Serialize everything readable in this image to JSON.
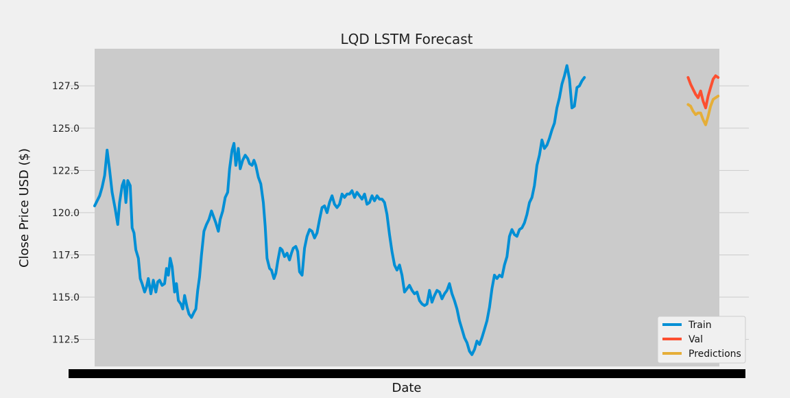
{
  "chart_data": {
    "type": "line",
    "title": "LQD LSTM Forecast",
    "xlabel": "Date",
    "ylabel": "Close Price USD ($)",
    "ylim": [
      110.9,
      129.7
    ],
    "yticks": [
      "112.5",
      "115.0",
      "117.5",
      "120.0",
      "122.5",
      "125.0",
      "127.5"
    ],
    "grid": true,
    "legend_position": "bottom-right",
    "x_index_range": [
      0,
      1000
    ],
    "colors": {
      "train": "#008fd5",
      "val": "#fc4f30",
      "predictions": "#e5ae38",
      "plot_bg": "#cbcbcb",
      "figure_bg": "#f0f0f0",
      "grid": "#cbcbcb"
    },
    "series": [
      {
        "name": "Train",
        "x_range": [
          0,
          950
        ],
        "points": [
          [
            0,
            120.4
          ],
          [
            8,
            121.0
          ],
          [
            12,
            121.5
          ],
          [
            16,
            122.2
          ],
          [
            20,
            123.7
          ],
          [
            24,
            122.5
          ],
          [
            28,
            121.2
          ],
          [
            33,
            120.2
          ],
          [
            37,
            119.3
          ],
          [
            40,
            120.6
          ],
          [
            44,
            121.6
          ],
          [
            47,
            121.9
          ],
          [
            50,
            120.6
          ],
          [
            53,
            121.9
          ],
          [
            57,
            121.6
          ],
          [
            60,
            119.1
          ],
          [
            63,
            118.8
          ],
          [
            66,
            117.8
          ],
          [
            70,
            117.3
          ],
          [
            73,
            116.1
          ],
          [
            76,
            115.8
          ],
          [
            80,
            115.3
          ],
          [
            83,
            115.6
          ],
          [
            86,
            116.1
          ],
          [
            90,
            115.2
          ],
          [
            94,
            116.0
          ],
          [
            98,
            115.3
          ],
          [
            101,
            115.9
          ],
          [
            104,
            116.0
          ],
          [
            108,
            115.7
          ],
          [
            112,
            115.8
          ],
          [
            115,
            116.7
          ],
          [
            118,
            116.3
          ],
          [
            121,
            117.3
          ],
          [
            124,
            116.8
          ],
          [
            128,
            115.3
          ],
          [
            131,
            115.8
          ],
          [
            134,
            114.8
          ],
          [
            138,
            114.6
          ],
          [
            141,
            114.3
          ],
          [
            144,
            115.1
          ],
          [
            148,
            114.4
          ],
          [
            151,
            114.0
          ],
          [
            155,
            113.8
          ],
          [
            159,
            114.1
          ],
          [
            162,
            114.3
          ],
          [
            165,
            115.4
          ],
          [
            168,
            116.2
          ],
          [
            171,
            117.5
          ],
          [
            175,
            118.9
          ],
          [
            179,
            119.3
          ],
          [
            183,
            119.6
          ],
          [
            187,
            120.1
          ],
          [
            190,
            119.8
          ],
          [
            194,
            119.4
          ],
          [
            198,
            118.9
          ],
          [
            201,
            119.6
          ],
          [
            205,
            120.1
          ],
          [
            209,
            120.9
          ],
          [
            213,
            121.2
          ],
          [
            216,
            122.6
          ],
          [
            220,
            123.7
          ],
          [
            223,
            124.1
          ],
          [
            226,
            122.8
          ],
          [
            230,
            123.8
          ],
          [
            233,
            122.6
          ],
          [
            237,
            123.1
          ],
          [
            241,
            123.4
          ],
          [
            245,
            123.2
          ],
          [
            248,
            122.9
          ],
          [
            252,
            122.8
          ],
          [
            255,
            123.1
          ],
          [
            258,
            122.8
          ],
          [
            262,
            122.1
          ],
          [
            266,
            121.7
          ],
          [
            270,
            120.6
          ],
          [
            273,
            119.2
          ],
          [
            276,
            117.3
          ],
          [
            280,
            116.7
          ],
          [
            283,
            116.6
          ],
          [
            287,
            116.1
          ],
          [
            290,
            116.4
          ],
          [
            293,
            117.1
          ],
          [
            297,
            117.9
          ],
          [
            300,
            117.8
          ],
          [
            304,
            117.4
          ],
          [
            308,
            117.6
          ],
          [
            312,
            117.2
          ],
          [
            315,
            117.6
          ],
          [
            318,
            117.9
          ],
          [
            322,
            118.0
          ],
          [
            325,
            117.7
          ],
          [
            328,
            116.5
          ],
          [
            332,
            116.3
          ],
          [
            336,
            117.9
          ],
          [
            340,
            118.6
          ],
          [
            344,
            119.0
          ],
          [
            348,
            118.9
          ],
          [
            352,
            118.5
          ],
          [
            356,
            118.8
          ],
          [
            360,
            119.6
          ],
          [
            364,
            120.3
          ],
          [
            368,
            120.4
          ],
          [
            372,
            120.0
          ],
          [
            376,
            120.6
          ],
          [
            380,
            121.0
          ],
          [
            384,
            120.5
          ],
          [
            388,
            120.3
          ],
          [
            392,
            120.5
          ],
          [
            396,
            121.1
          ],
          [
            400,
            120.9
          ],
          [
            404,
            121.1
          ],
          [
            408,
            121.1
          ],
          [
            412,
            121.3
          ],
          [
            416,
            120.9
          ],
          [
            420,
            121.2
          ],
          [
            424,
            121.0
          ],
          [
            428,
            120.8
          ],
          [
            432,
            121.1
          ],
          [
            436,
            120.5
          ],
          [
            440,
            120.6
          ],
          [
            444,
            121.0
          ],
          [
            448,
            120.7
          ],
          [
            452,
            121.0
          ],
          [
            456,
            120.8
          ],
          [
            460,
            120.8
          ],
          [
            464,
            120.6
          ],
          [
            468,
            119.9
          ],
          [
            472,
            118.7
          ],
          [
            476,
            117.7
          ],
          [
            480,
            116.9
          ],
          [
            484,
            116.6
          ],
          [
            488,
            116.9
          ],
          [
            492,
            116.3
          ],
          [
            496,
            115.3
          ],
          [
            500,
            115.5
          ],
          [
            504,
            115.7
          ],
          [
            508,
            115.4
          ],
          [
            512,
            115.2
          ],
          [
            516,
            115.3
          ],
          [
            520,
            114.8
          ],
          [
            524,
            114.6
          ],
          [
            528,
            114.5
          ],
          [
            532,
            114.6
          ],
          [
            536,
            115.4
          ],
          [
            540,
            114.7
          ],
          [
            544,
            115.1
          ],
          [
            548,
            115.4
          ],
          [
            552,
            115.3
          ],
          [
            556,
            114.9
          ],
          [
            560,
            115.2
          ],
          [
            564,
            115.4
          ],
          [
            568,
            115.8
          ],
          [
            572,
            115.2
          ],
          [
            576,
            114.8
          ],
          [
            580,
            114.3
          ],
          [
            584,
            113.6
          ],
          [
            588,
            113.1
          ],
          [
            592,
            112.6
          ],
          [
            596,
            112.3
          ],
          [
            600,
            111.8
          ],
          [
            604,
            111.6
          ],
          [
            608,
            111.9
          ],
          [
            612,
            112.4
          ],
          [
            616,
            112.2
          ],
          [
            620,
            112.6
          ],
          [
            624,
            113.1
          ],
          [
            628,
            113.6
          ],
          [
            632,
            114.4
          ],
          [
            636,
            115.5
          ],
          [
            640,
            116.3
          ],
          [
            644,
            116.1
          ],
          [
            648,
            116.3
          ],
          [
            652,
            116.2
          ],
          [
            656,
            116.9
          ],
          [
            660,
            117.4
          ],
          [
            664,
            118.6
          ],
          [
            668,
            119.0
          ],
          [
            672,
            118.7
          ],
          [
            676,
            118.6
          ],
          [
            680,
            119.0
          ],
          [
            684,
            119.1
          ],
          [
            688,
            119.4
          ],
          [
            692,
            119.9
          ],
          [
            696,
            120.6
          ],
          [
            700,
            120.9
          ],
          [
            704,
            121.6
          ],
          [
            708,
            122.8
          ],
          [
            712,
            123.4
          ],
          [
            716,
            124.3
          ],
          [
            720,
            123.8
          ],
          [
            724,
            124.0
          ],
          [
            728,
            124.4
          ],
          [
            732,
            124.9
          ],
          [
            736,
            125.3
          ],
          [
            740,
            126.2
          ],
          [
            744,
            126.8
          ],
          [
            748,
            127.6
          ],
          [
            752,
            128.1
          ],
          [
            756,
            128.7
          ],
          [
            760,
            127.9
          ],
          [
            764,
            126.2
          ],
          [
            768,
            126.3
          ],
          [
            772,
            127.4
          ],
          [
            776,
            127.5
          ],
          [
            780,
            127.8
          ],
          [
            784,
            128.0
          ]
        ]
      },
      {
        "name": "Val",
        "x_range": [
          950,
          1000
        ],
        "points": [
          [
            950,
            128.0
          ],
          [
            954,
            127.6
          ],
          [
            958,
            127.3
          ],
          [
            962,
            127.0
          ],
          [
            966,
            126.8
          ],
          [
            970,
            127.2
          ],
          [
            974,
            126.6
          ],
          [
            978,
            126.2
          ],
          [
            982,
            126.9
          ],
          [
            986,
            127.4
          ],
          [
            990,
            127.9
          ],
          [
            994,
            128.1
          ],
          [
            998,
            128.0
          ]
        ]
      },
      {
        "name": "Predictions",
        "x_range": [
          950,
          1000
        ],
        "points": [
          [
            950,
            126.4
          ],
          [
            954,
            126.3
          ],
          [
            958,
            126.0
          ],
          [
            962,
            125.8
          ],
          [
            966,
            125.9
          ],
          [
            970,
            125.9
          ],
          [
            974,
            125.5
          ],
          [
            978,
            125.2
          ],
          [
            982,
            125.7
          ],
          [
            986,
            126.3
          ],
          [
            990,
            126.7
          ],
          [
            994,
            126.8
          ],
          [
            998,
            126.9
          ]
        ]
      }
    ]
  }
}
